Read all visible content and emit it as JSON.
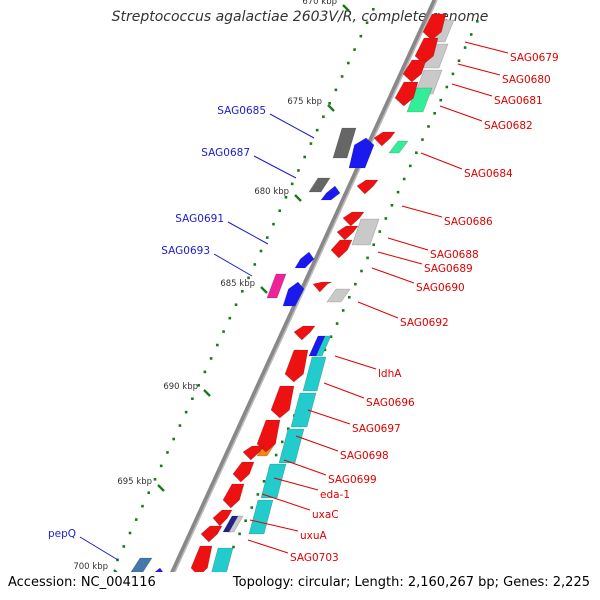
{
  "title": "Streptococcus agalactiae 2603V/R, complete genome",
  "footer": {
    "accession": "Accession: NC_004116",
    "topology": "Topology: circular; Length: 2,160,267 bp; Genes: 2,225"
  },
  "colors": {
    "backbone": "#888888",
    "tick": "#1a7a1a",
    "forward_label": "#e00000",
    "reverse_label": "#1c1ccc",
    "red_gene": "#ee1111",
    "blue_gene": "#1a1aee",
    "gray_gene": "#c9c9c9",
    "dark_gray_gene": "#666666",
    "cyan_gene": "#22cccc",
    "green_gene": "#33ee99",
    "magenta_gene": "#ee2299",
    "orange_gene": "#ee8811",
    "navy_gene": "#222288",
    "steel_gene": "#4477aa"
  },
  "scale": {
    "unit": "kbp",
    "ticks": [
      "670 kbp",
      "675 kbp",
      "680 kbp",
      "685 kbp",
      "690 kbp",
      "695 kbp",
      "700 kbp"
    ]
  },
  "forward_genes": [
    "SAG0679",
    "SAG0680",
    "SAG0681",
    "SAG0682",
    "SAG0684",
    "SAG0686",
    "SAG0688",
    "SAG0689",
    "SAG0690",
    "SAG0692",
    "ldhA",
    "SAG0696",
    "SAG0697",
    "SAG0698",
    "SAG0699",
    "eda-1",
    "uxaC",
    "uxuA",
    "SAG0703"
  ],
  "reverse_genes": [
    "SAG0685",
    "SAG0687",
    "SAG0691",
    "SAG0693",
    "pepQ"
  ]
}
